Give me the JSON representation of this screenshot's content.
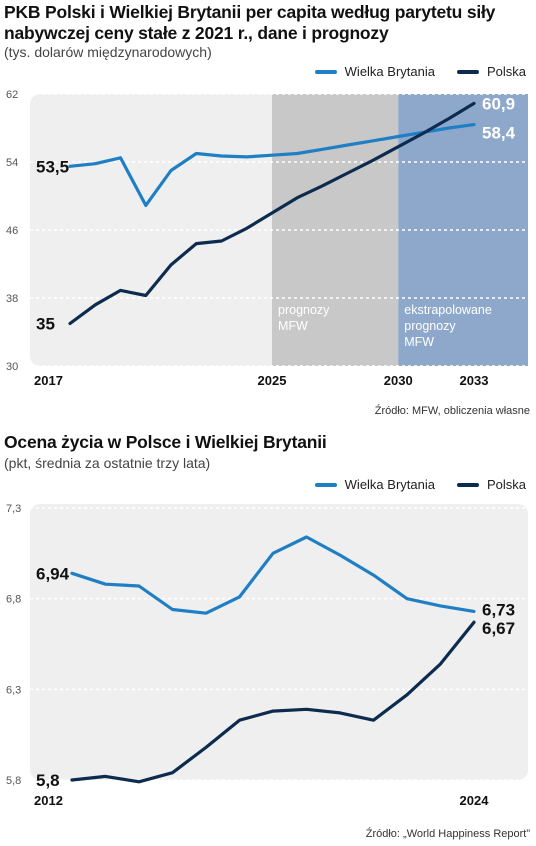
{
  "chart_data": [
    {
      "type": "line",
      "title": "PKB Polski i Wielkiej Brytanii per capita według parytetu siły nabywczej ceny stałe z 2021 r., dane i prognozy",
      "subtitle": "(tys. dolarów międzynarodowych)",
      "source": "Źródło: MFW, obliczenia własne",
      "x": [
        2017,
        2018,
        2019,
        2020,
        2021,
        2022,
        2023,
        2024,
        2025,
        2026,
        2027,
        2028,
        2029,
        2030,
        2031,
        2032,
        2033
      ],
      "x_tick_labels": [
        "2017",
        "2025",
        "2030",
        "2033"
      ],
      "y_ticks": [
        "62",
        "54",
        "46",
        "38",
        "30"
      ],
      "ylim": [
        30,
        62
      ],
      "legend": "top-right",
      "series": [
        {
          "name": "Wielka Brytania",
          "color": "#1f7fc4",
          "values": [
            53.5,
            53.8,
            54.5,
            48.9,
            53.0,
            55.0,
            54.7,
            54.6,
            54.8,
            55.0,
            55.5,
            56.0,
            56.5,
            57.0,
            57.5,
            58.0,
            58.4
          ],
          "start_label": "53,5",
          "end_label": "58,4"
        },
        {
          "name": "Polska",
          "color": "#0d2b4e",
          "values": [
            35.0,
            37.2,
            38.9,
            38.3,
            41.9,
            44.4,
            44.7,
            46.2,
            48.0,
            49.8,
            51.2,
            52.7,
            54.2,
            55.8,
            57.4,
            59.1,
            60.9
          ],
          "start_label": "35",
          "end_label": "60,9"
        }
      ],
      "shaded_regions": [
        {
          "from": 2025,
          "to": 2030,
          "label_lines": [
            "prognozy",
            "MFW"
          ],
          "color": "#c8c8c8"
        },
        {
          "from": 2030,
          "to": 2033,
          "label_lines": [
            "ekstrapolowane",
            "prognozy",
            "MFW"
          ],
          "color": "#8ea8cc"
        }
      ]
    },
    {
      "type": "line",
      "title": "Ocena życia w Polsce i Wielkiej Brytanii",
      "subtitle": "(pkt, średnia za ostatnie trzy lata)",
      "source": "Źródło: „World Happiness Report”",
      "x": [
        2012,
        2013,
        2014,
        2015,
        2016,
        2017,
        2018,
        2019,
        2020,
        2021,
        2022,
        2023,
        2024
      ],
      "x_tick_labels": [
        "2012",
        "2024"
      ],
      "y_ticks": [
        "7,3",
        "6,8",
        "6,3",
        "5,8"
      ],
      "ylim": [
        5.8,
        7.3
      ],
      "legend": "top-right",
      "series": [
        {
          "name": "Wielka Brytania",
          "color": "#1f7fc4",
          "values": [
            6.94,
            6.88,
            6.87,
            6.74,
            6.72,
            6.81,
            7.05,
            7.14,
            7.04,
            6.93,
            6.8,
            6.76,
            6.73
          ],
          "start_label": "6,94",
          "end_label": "6,73"
        },
        {
          "name": "Polska",
          "color": "#0d2b4e",
          "values": [
            5.8,
            5.82,
            5.79,
            5.84,
            5.98,
            6.13,
            6.18,
            6.19,
            6.17,
            6.13,
            6.27,
            6.44,
            6.67
          ],
          "start_label": "5,8",
          "end_label": "6,67"
        }
      ]
    }
  ]
}
